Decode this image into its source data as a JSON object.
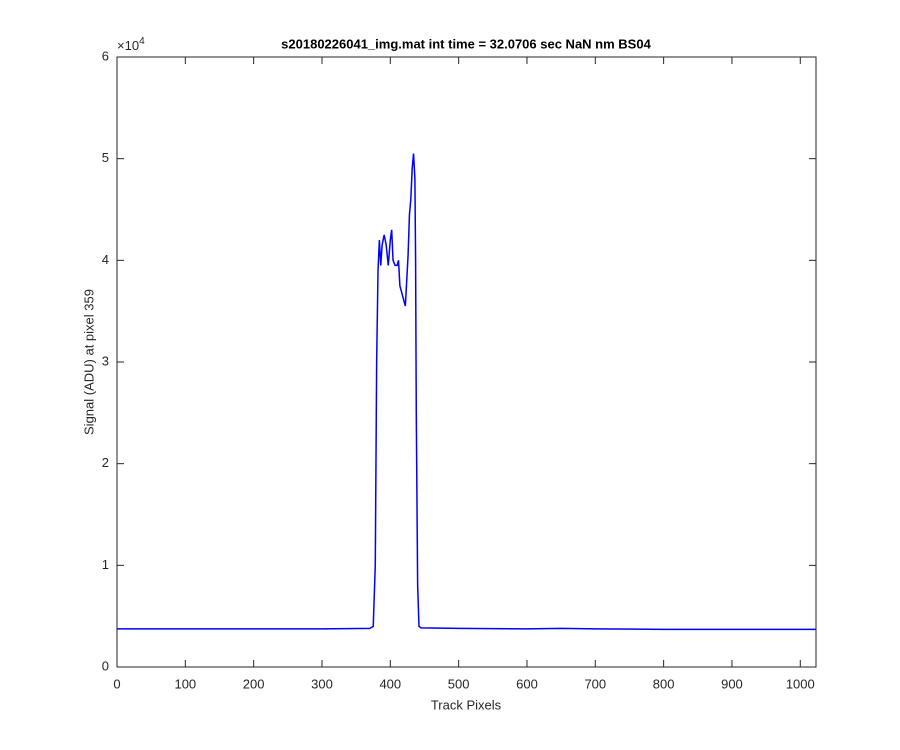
{
  "chart_data": {
    "type": "line",
    "title": "s20180226041_img.mat int time = 32.0706 sec  NaN nm BS04",
    "xlabel": "Track Pixels",
    "ylabel": "Signal (ADU) at pixel 359",
    "y_multiplier": {
      "base": "×10",
      "exponent": "4"
    },
    "xlim": [
      0,
      1023
    ],
    "xticks": [
      0,
      100,
      200,
      300,
      400,
      500,
      600,
      700,
      800,
      900,
      1000
    ],
    "ylim": [
      0,
      6
    ],
    "yticks": [
      0,
      1,
      2,
      3,
      4,
      5,
      6
    ],
    "grid": false,
    "series": [
      {
        "color": "#0000ff",
        "x": [
          0,
          100,
          200,
          300,
          370,
          375,
          378,
          380,
          382,
          384,
          386,
          388,
          391,
          394,
          397,
          400,
          402,
          404,
          407,
          410,
          412,
          414,
          416,
          418,
          420,
          422,
          424,
          426,
          428,
          430,
          432,
          434,
          436,
          437,
          438,
          440,
          442,
          445,
          500,
          600,
          650,
          700,
          800,
          900,
          1023
        ],
        "values": [
          0.375,
          0.375,
          0.375,
          0.375,
          0.38,
          0.4,
          1.0,
          3.0,
          3.9,
          4.2,
          3.95,
          4.15,
          4.25,
          4.15,
          3.95,
          4.2,
          4.3,
          4.0,
          3.95,
          3.95,
          4.0,
          3.75,
          3.7,
          3.65,
          3.6,
          3.55,
          3.8,
          4.05,
          4.45,
          4.6,
          4.9,
          5.05,
          4.8,
          4.0,
          2.5,
          0.8,
          0.4,
          0.385,
          0.38,
          0.375,
          0.38,
          0.375,
          0.37,
          0.37,
          0.37
        ]
      }
    ]
  }
}
